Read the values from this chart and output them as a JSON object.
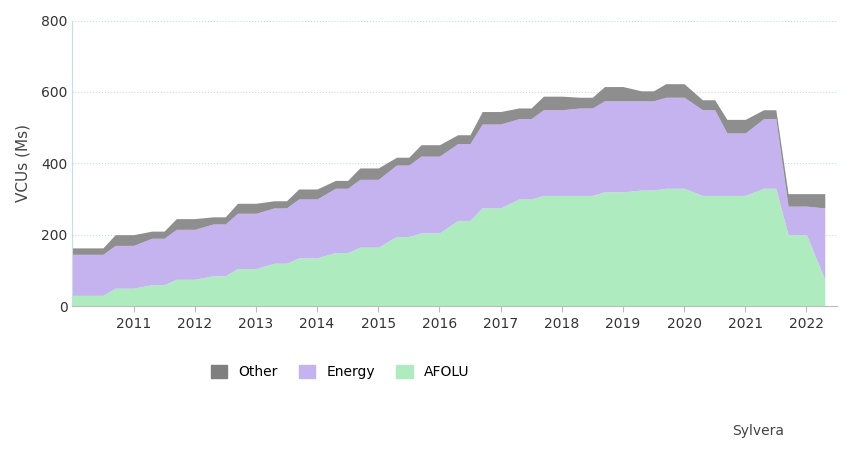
{
  "years": [
    2010.0,
    2010.5,
    2010.7,
    2011.0,
    2011.3,
    2011.5,
    2011.7,
    2012.0,
    2012.3,
    2012.5,
    2012.7,
    2013.0,
    2013.3,
    2013.5,
    2013.7,
    2014.0,
    2014.3,
    2014.5,
    2014.7,
    2015.0,
    2015.3,
    2015.5,
    2015.7,
    2016.0,
    2016.3,
    2016.5,
    2016.7,
    2017.0,
    2017.3,
    2017.5,
    2017.7,
    2018.0,
    2018.3,
    2018.5,
    2018.7,
    2019.0,
    2019.3,
    2019.5,
    2019.7,
    2020.0,
    2020.3,
    2020.5,
    2020.7,
    2021.0,
    2021.3,
    2021.5,
    2021.7,
    2022.0,
    2022.3
  ],
  "afolu": [
    30,
    30,
    50,
    50,
    60,
    60,
    75,
    75,
    85,
    85,
    105,
    105,
    120,
    120,
    135,
    135,
    150,
    150,
    165,
    165,
    195,
    195,
    205,
    205,
    240,
    240,
    275,
    275,
    300,
    300,
    310,
    310,
    310,
    310,
    320,
    320,
    325,
    325,
    330,
    330,
    310,
    310,
    310,
    310,
    330,
    330,
    200,
    200,
    75
  ],
  "energy": [
    115,
    115,
    120,
    120,
    130,
    130,
    140,
    140,
    145,
    145,
    155,
    155,
    155,
    155,
    165,
    165,
    180,
    180,
    190,
    190,
    200,
    200,
    215,
    215,
    215,
    215,
    235,
    235,
    225,
    225,
    240,
    240,
    245,
    245,
    255,
    255,
    250,
    250,
    255,
    255,
    240,
    240,
    175,
    175,
    195,
    195,
    80,
    80,
    200
  ],
  "other": [
    18,
    18,
    30,
    30,
    20,
    20,
    30,
    30,
    20,
    20,
    28,
    28,
    20,
    20,
    28,
    28,
    22,
    22,
    32,
    32,
    22,
    22,
    32,
    32,
    25,
    25,
    35,
    35,
    30,
    30,
    38,
    38,
    30,
    30,
    40,
    40,
    28,
    28,
    38,
    38,
    28,
    28,
    38,
    38,
    25,
    25,
    35,
    35,
    40
  ],
  "afolu_color": "#aeecc0",
  "energy_color": "#c5b3f0",
  "other_color": "#7f7f7f",
  "background_color": "#ffffff",
  "grid_color": "#c8dce8",
  "ylabel": "VCUs (Ms)",
  "ylim": [
    0,
    800
  ],
  "yticks": [
    0,
    200,
    400,
    600,
    800
  ],
  "xlim": [
    2010.0,
    2022.5
  ],
  "xticks": [
    2011,
    2012,
    2013,
    2014,
    2015,
    2016,
    2017,
    2018,
    2019,
    2020,
    2021,
    2022
  ],
  "legend_labels": [
    "Other",
    "Energy",
    "AFOLU"
  ],
  "axis_fontsize": 11,
  "tick_fontsize": 10
}
